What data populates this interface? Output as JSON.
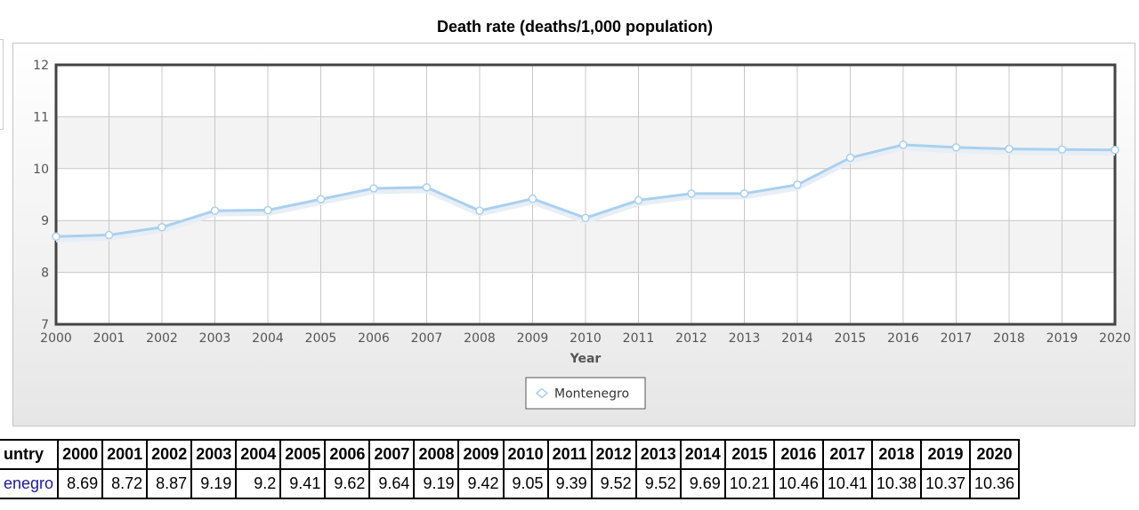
{
  "page": {
    "title": "Death rate (deaths/1,000 population)"
  },
  "chart_data": {
    "type": "line",
    "title": "Death rate (deaths/1,000 population)",
    "xlabel": "Year",
    "ylabel": "",
    "x": [
      2000,
      2001,
      2002,
      2003,
      2004,
      2005,
      2006,
      2007,
      2008,
      2009,
      2010,
      2011,
      2012,
      2013,
      2014,
      2015,
      2016,
      2017,
      2018,
      2019,
      2020
    ],
    "x_ticks": [
      "2000",
      "2001",
      "2002",
      "2003",
      "2004",
      "2005",
      "2006",
      "2007",
      "2008",
      "2009",
      "2010",
      "2011",
      "2012",
      "2013",
      "2014",
      "2015",
      "2016",
      "2017",
      "2018",
      "2019",
      "2020"
    ],
    "y_ticks": [
      "7",
      "8",
      "9",
      "10",
      "11",
      "12"
    ],
    "ylim": [
      7,
      12
    ],
    "xlim": [
      2000,
      2020
    ],
    "grid": true,
    "legend": "bottom-center",
    "series": [
      {
        "name": "Montenegro",
        "color": "#a9d0ef",
        "values": [
          8.69,
          8.72,
          8.87,
          9.19,
          9.2,
          9.41,
          9.62,
          9.64,
          9.19,
          9.42,
          9.05,
          9.39,
          9.52,
          9.52,
          9.69,
          10.21,
          10.46,
          10.41,
          10.38,
          10.37,
          10.36
        ]
      }
    ]
  },
  "table": {
    "header_country": "untry",
    "years": [
      "2000",
      "2001",
      "2002",
      "2003",
      "2004",
      "2005",
      "2006",
      "2007",
      "2008",
      "2009",
      "2010",
      "2011",
      "2012",
      "2013",
      "2014",
      "2015",
      "2016",
      "2017",
      "2018",
      "2019",
      "2020"
    ],
    "rows": [
      {
        "country": "enegro",
        "values": [
          "8.69",
          "8.72",
          "8.87",
          "9.19",
          "9.2",
          "9.41",
          "9.62",
          "9.64",
          "9.19",
          "9.42",
          "9.05",
          "9.39",
          "9.52",
          "9.52",
          "9.69",
          "10.21",
          "10.46",
          "10.41",
          "10.38",
          "10.37",
          "10.36"
        ]
      }
    ]
  }
}
